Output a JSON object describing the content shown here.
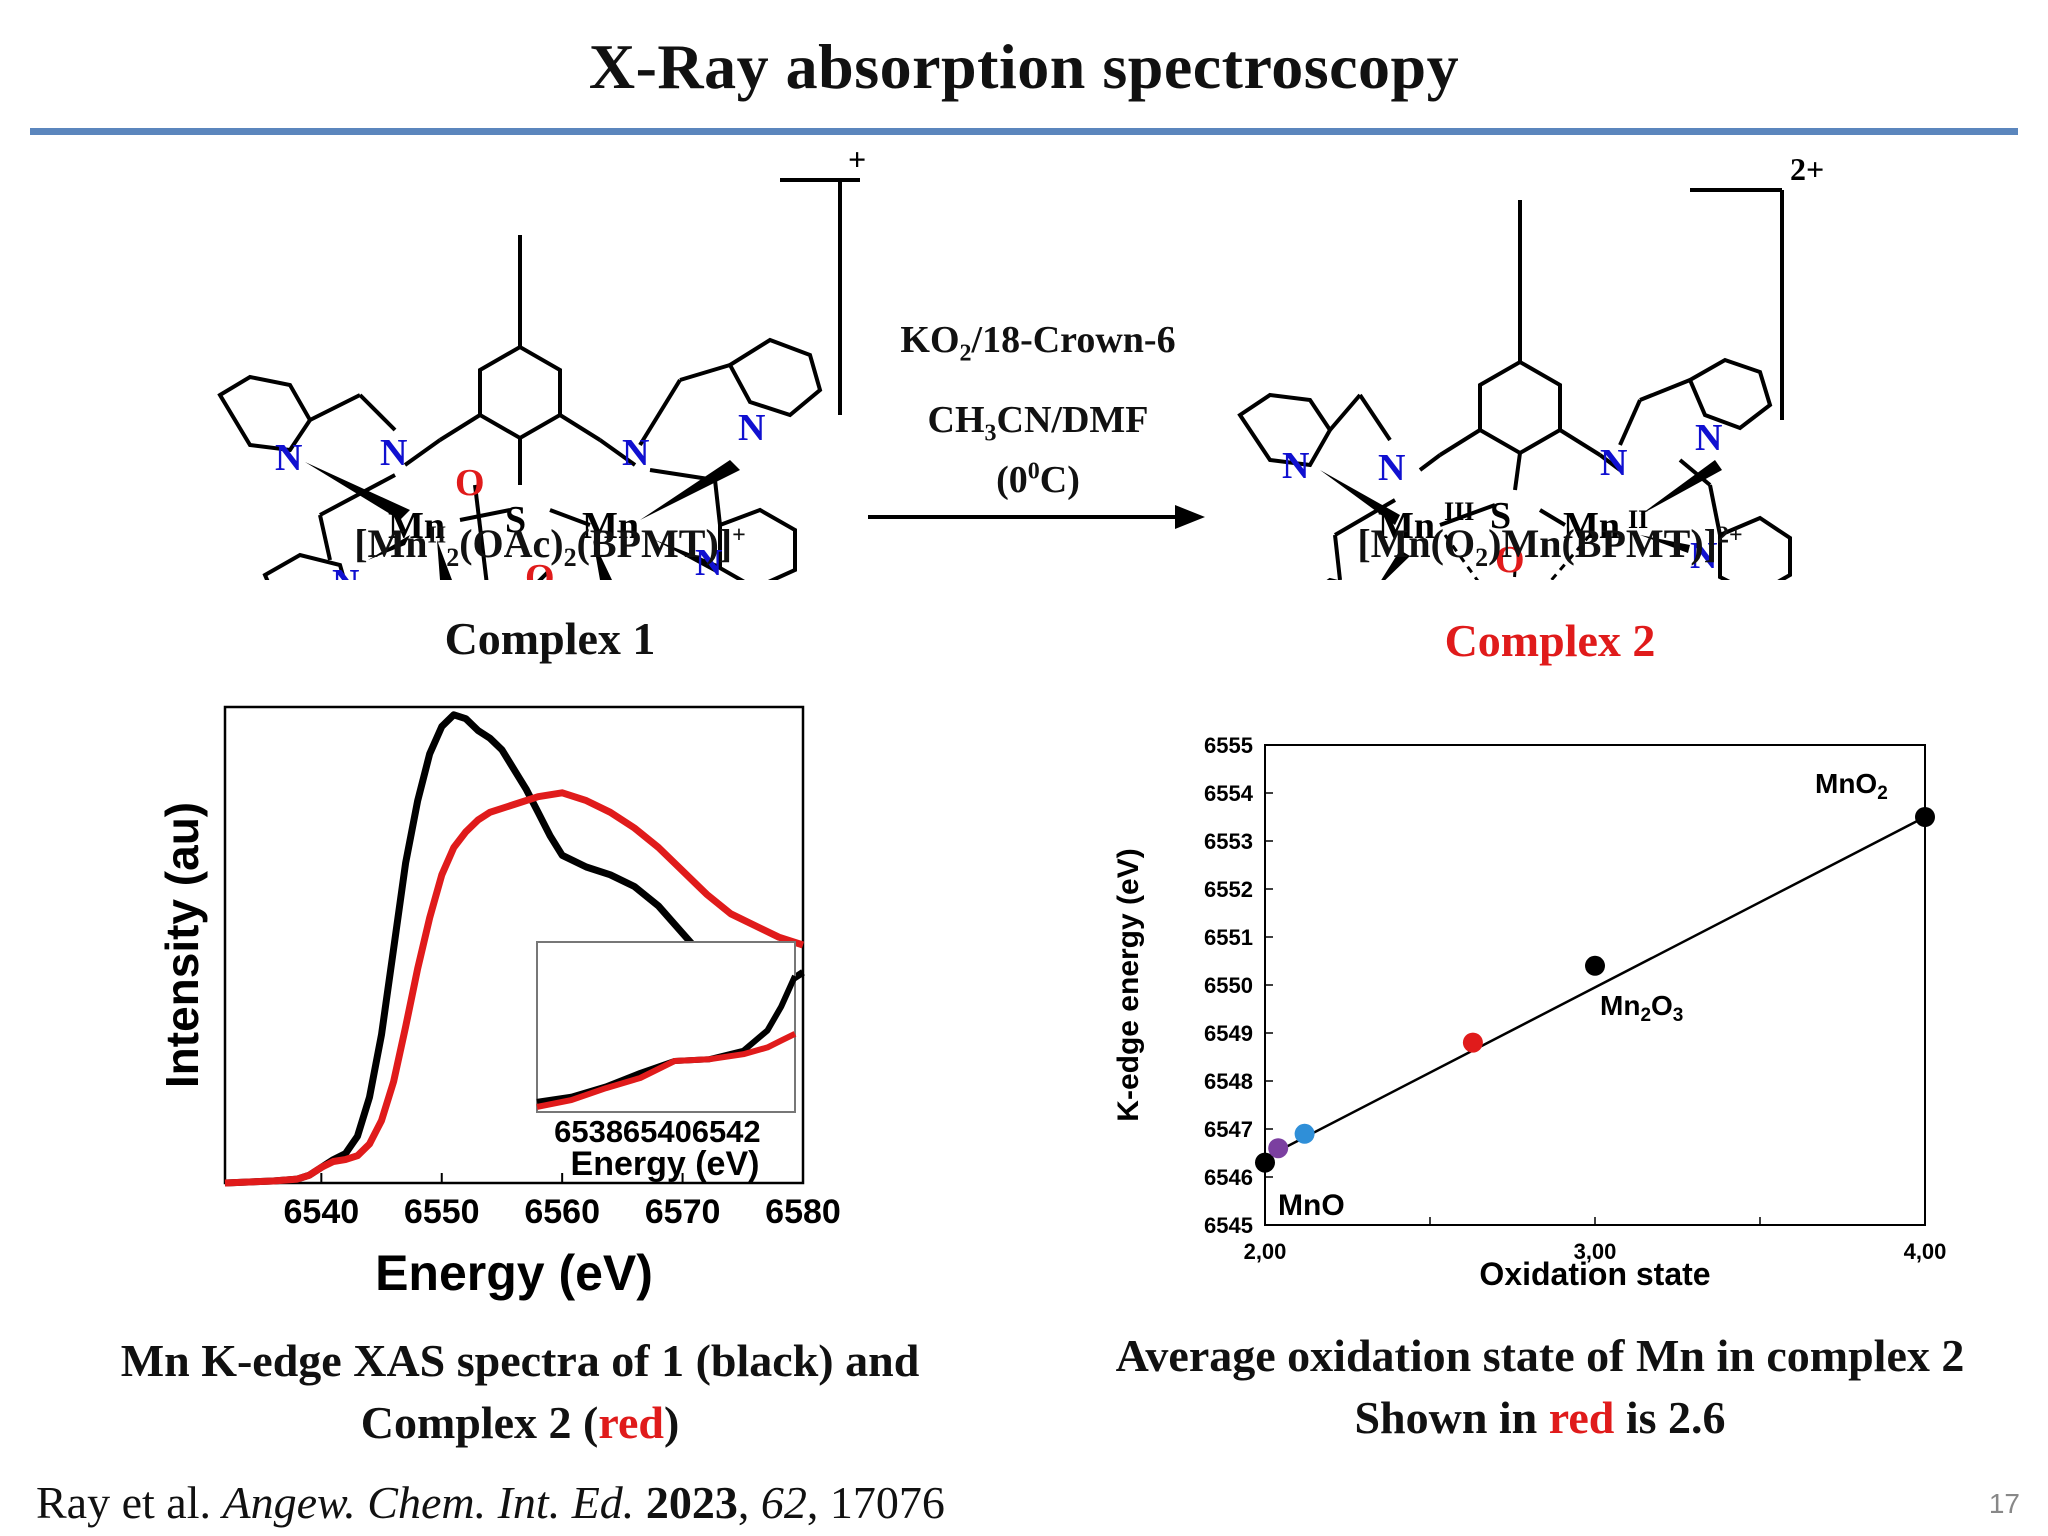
{
  "slide": {
    "title": "X-Ray absorption spectroscopy",
    "page_number": "17",
    "citation": {
      "authors": "Ray et al.",
      "journal": "Angew. Chem. Int. Ed.",
      "year": "2023",
      "volume": "62",
      "pages": "17076"
    }
  },
  "scheme": {
    "complex1": {
      "formula_main": "[Mn",
      "formula_ox": "II",
      "formula_sub2": "2",
      "formula_mid": "(OAc)",
      "formula_sub2b": "2",
      "formula_end": "(BPMT)]",
      "charge": "+",
      "label": "Complex 1"
    },
    "complex2": {
      "formula_a": "[Mn(O",
      "formula_sub": "2",
      "formula_b": ")Mn(BPMT)]",
      "charge": "2+",
      "label": "Complex 2"
    },
    "reagent_top_a": "KO",
    "reagent_top_sub": "2",
    "reagent_top_b": "/18-Crown-6",
    "reagent_mid_a": "CH",
    "reagent_mid_sub": "3",
    "reagent_mid_b": "CN/DMF",
    "reagent_bot_a": "(0",
    "reagent_bot_sup": "0",
    "reagent_bot_b": "C)",
    "atoms": {
      "N": "N",
      "O": "O",
      "S": "S",
      "Mn": "Mn",
      "ox_III": "III",
      "ox_II": "II"
    },
    "colors": {
      "nitrogen": "#1010d0",
      "oxygen": "#e01b1b",
      "bond": "#000000"
    }
  },
  "chart_data": [
    {
      "type": "line",
      "xlabel": "Energy (eV)",
      "ylabel": "Intensity (au)",
      "xlim": [
        6532,
        6580
      ],
      "ylim": [
        0,
        1.22
      ],
      "xticks": [
        "6540",
        "6550",
        "6560",
        "6570",
        "6580"
      ],
      "series": [
        {
          "color": "#000000",
          "x": [
            6532,
            6536,
            6538,
            6539,
            6540,
            6541,
            6542,
            6543,
            6544,
            6545,
            6546,
            6547,
            6548,
            6549,
            6550,
            6551,
            6552,
            6553,
            6554,
            6555,
            6556,
            6557,
            6558,
            6559,
            6560,
            6562,
            6564,
            6566,
            6568,
            6570,
            6572,
            6574,
            6576,
            6578,
            6580
          ],
          "y": [
            0.0,
            0.005,
            0.01,
            0.02,
            0.04,
            0.06,
            0.075,
            0.12,
            0.22,
            0.38,
            0.6,
            0.82,
            0.98,
            1.1,
            1.17,
            1.2,
            1.19,
            1.16,
            1.14,
            1.11,
            1.06,
            1.01,
            0.95,
            0.89,
            0.84,
            0.81,
            0.79,
            0.76,
            0.71,
            0.64,
            0.57,
            0.52,
            0.5,
            0.5,
            0.54
          ]
        },
        {
          "color": "#e01b1b",
          "x": [
            6532,
            6536,
            6538,
            6539,
            6540,
            6541,
            6542,
            6543,
            6544,
            6545,
            6546,
            6547,
            6548,
            6549,
            6550,
            6551,
            6552,
            6553,
            6554,
            6556,
            6558,
            6560,
            6562,
            6564,
            6566,
            6568,
            6570,
            6572,
            6574,
            6576,
            6578,
            6580
          ],
          "y": [
            0.0,
            0.005,
            0.01,
            0.02,
            0.04,
            0.055,
            0.06,
            0.07,
            0.1,
            0.16,
            0.26,
            0.4,
            0.55,
            0.68,
            0.79,
            0.86,
            0.9,
            0.93,
            0.95,
            0.97,
            0.99,
            1.0,
            0.98,
            0.95,
            0.91,
            0.86,
            0.8,
            0.74,
            0.69,
            0.66,
            0.63,
            0.61
          ]
        }
      ],
      "inset": {
        "xlabel": "Energy (eV)",
        "xlim": [
          6536.5,
          6544
        ],
        "xticks": [
          "6538",
          "6540",
          "6542"
        ],
        "series": [
          {
            "color": "#000000",
            "x": [
              6536.5,
              6537.5,
              6538.5,
              6539.5,
              6540.5,
              6541.5,
              6542.5,
              6543.2,
              6543.6,
              6544
            ],
            "y": [
              0.06,
              0.09,
              0.15,
              0.23,
              0.3,
              0.31,
              0.36,
              0.48,
              0.62,
              0.8
            ]
          },
          {
            "color": "#e01b1b",
            "x": [
              6536.5,
              6537.5,
              6538.5,
              6539.5,
              6540.5,
              6541.5,
              6542.5,
              6543.2,
              6543.6,
              6544
            ],
            "y": [
              0.03,
              0.07,
              0.14,
              0.2,
              0.3,
              0.31,
              0.34,
              0.38,
              0.42,
              0.46
            ]
          }
        ]
      }
    },
    {
      "type": "scatter",
      "xlabel": "Oxidation state",
      "ylabel": "K-edge energy (eV)",
      "xlim": [
        2.0,
        4.0
      ],
      "ylim": [
        6545,
        6555
      ],
      "xticks": [
        "2,00",
        "3,00",
        "4,00"
      ],
      "yticks": [
        "6545",
        "6546",
        "6547",
        "6548",
        "6549",
        "6550",
        "6551",
        "6552",
        "6553",
        "6554",
        "6555"
      ],
      "points": [
        {
          "x": 2.0,
          "y": 6546.3,
          "color": "#000000",
          "label": "MnO"
        },
        {
          "x": 2.04,
          "y": 6546.6,
          "color": "#7b3fa0",
          "label": ""
        },
        {
          "x": 2.12,
          "y": 6546.9,
          "color": "#2f8fd8",
          "label": ""
        },
        {
          "x": 2.63,
          "y": 6548.8,
          "color": "#e01b1b",
          "label": ""
        },
        {
          "x": 3.0,
          "y": 6550.4,
          "color": "#000000",
          "label": "Mn2O3"
        },
        {
          "x": 4.0,
          "y": 6553.5,
          "color": "#000000",
          "label": "MnO2"
        }
      ],
      "fit_line": {
        "x": [
          2.0,
          4.0
        ],
        "y": [
          6546.4,
          6553.5
        ]
      },
      "point_labels": {
        "MnO": "MnO",
        "Mn2O3_a": "Mn",
        "Mn2O3_s1": "2",
        "Mn2O3_b": "O",
        "Mn2O3_s2": "3",
        "MnO2_a": "MnO",
        "MnO2_s": "2"
      }
    }
  ],
  "captions": {
    "left_line1": "Mn K-edge XAS spectra of 1 (black) and",
    "left_line2_a": "Complex 2 (",
    "left_line2_red": "red",
    "left_line2_b": ")",
    "right_line1": "Average oxidation state of Mn in complex 2",
    "right_line2_a": "Shown in ",
    "right_line2_red": "red",
    "right_line2_b": " is 2.6"
  }
}
